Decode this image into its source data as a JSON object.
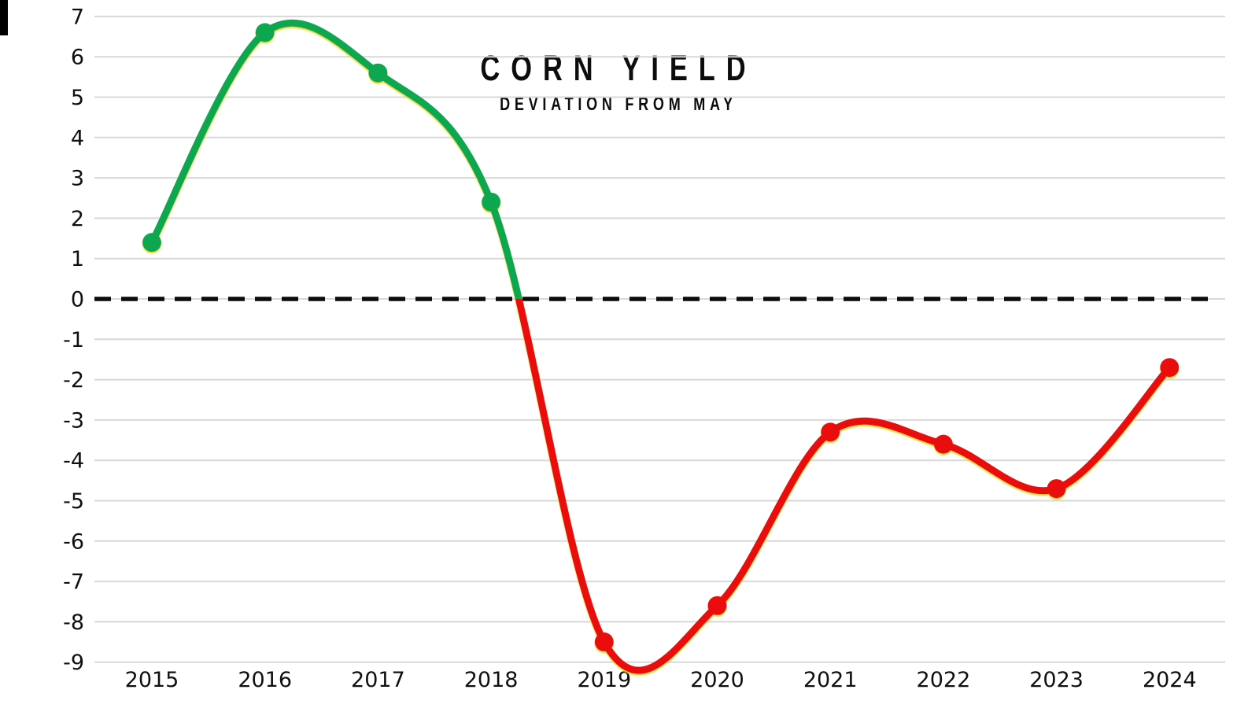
{
  "chart_data": {
    "type": "line",
    "title": "CORN YIELD",
    "subtitle": "DEVIATION FROM MAY",
    "categories": [
      "2015",
      "2016",
      "2017",
      "2018",
      "2019",
      "2020",
      "2021",
      "2022",
      "2023",
      "2024"
    ],
    "series": [
      {
        "name": "Corn yield deviation from May",
        "values": [
          1.4,
          6.6,
          5.6,
          2.4,
          -8.5,
          -7.6,
          -3.3,
          -3.6,
          -4.7,
          -1.7
        ]
      }
    ],
    "ylim": [
      -9,
      7
    ],
    "yticks": [
      7,
      6,
      5,
      4,
      3,
      2,
      1,
      0,
      -1,
      -2,
      -3,
      -4,
      -5,
      -6,
      -7,
      -8,
      -9
    ],
    "baseline": 0,
    "grid": true,
    "legend_position": "none",
    "smooth": true,
    "markers": true,
    "colors": {
      "positive": "#0ca750",
      "negative": "#e90d0d",
      "marker_glow": "#e8d42f",
      "zero_line": "#0c0c0c",
      "gridline": "#d8d8d8",
      "text": "#101010"
    }
  }
}
